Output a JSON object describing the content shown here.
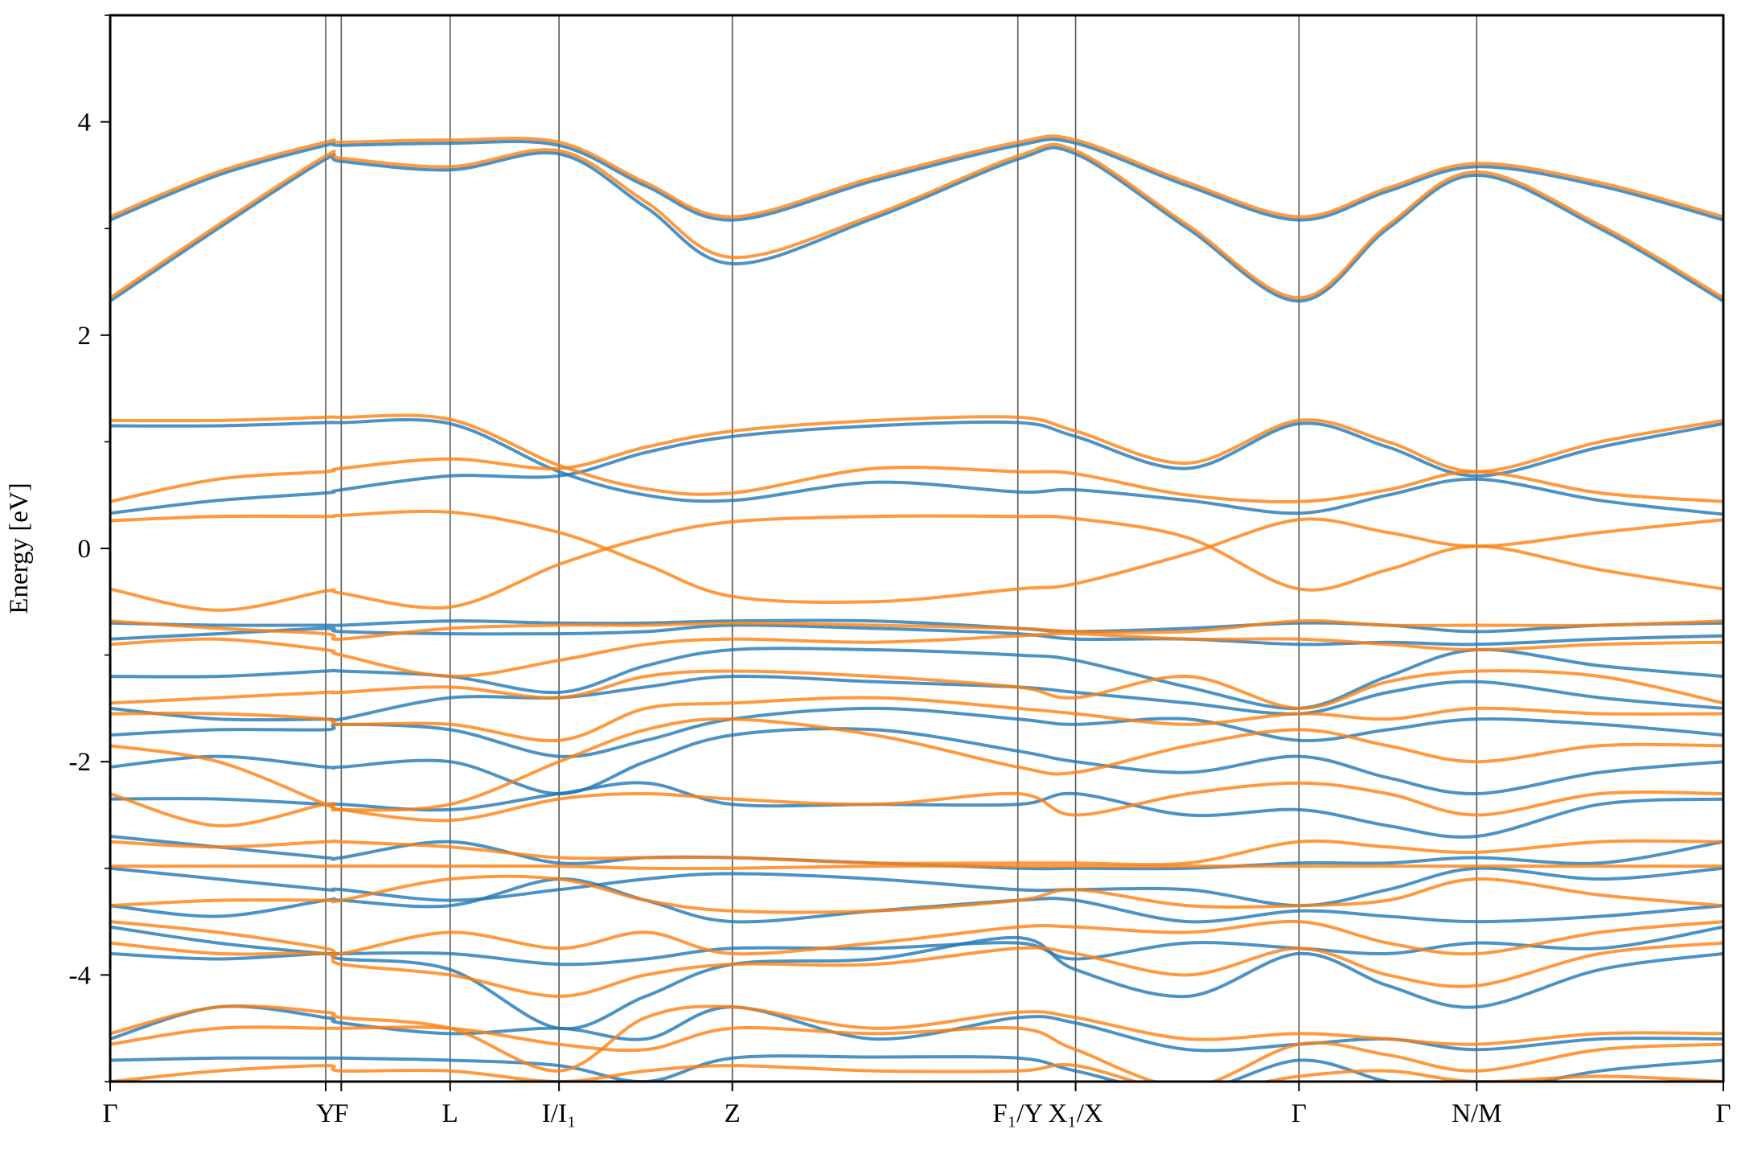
{
  "chart_data": {
    "type": "line",
    "title": "",
    "xlabel": "",
    "ylabel": "Energy [eV]",
    "ylim": [
      -5,
      5
    ],
    "yticks": [
      -4,
      -2,
      0,
      2,
      4
    ],
    "yticks_minor": [
      -5,
      -3,
      -1,
      1,
      3,
      5
    ],
    "grid": false,
    "legend": "none",
    "colors": {
      "blue": "#1f77b4",
      "orange": "#ff7f0e"
    },
    "xticks": [
      {
        "k": 0,
        "label": "Γ"
      },
      {
        "k": 1.94,
        "label": "Y"
      },
      {
        "k": 2.08,
        "label": "F"
      },
      {
        "k": 3.06,
        "label": "L"
      },
      {
        "k": 4.04,
        "label": "I/I₁"
      },
      {
        "k": 5.6,
        "label": "Z"
      },
      {
        "k": 8.17,
        "label": "F₁/Y"
      },
      {
        "k": 8.69,
        "label": "X₁/X"
      },
      {
        "k": 10.7,
        "label": "Γ"
      },
      {
        "k": 12.3,
        "label": "N/M"
      },
      {
        "k": 14.52,
        "label": "Γ"
      }
    ],
    "xlim": [
      0,
      14.52
    ],
    "k": [
      0,
      0.97,
      1.94,
      2.08,
      3.06,
      4.04,
      4.82,
      5.6,
      6.88,
      8.17,
      8.69,
      9.7,
      10.7,
      11.5,
      12.3,
      13.41,
      14.52
    ],
    "series": [
      {
        "color": "blue",
        "values": [
          3.08,
          3.5,
          3.78,
          3.78,
          3.8,
          3.78,
          3.4,
          3.08,
          3.45,
          3.78,
          3.8,
          3.4,
          3.08,
          3.35,
          3.58,
          3.4,
          3.08
        ]
      },
      {
        "color": "blue",
        "values": [
          2.32,
          3.0,
          3.65,
          3.63,
          3.55,
          3.7,
          3.2,
          2.67,
          3.1,
          3.65,
          3.7,
          3.0,
          2.32,
          3.0,
          3.5,
          3.0,
          2.32
        ]
      },
      {
        "color": "blue",
        "values": [
          1.15,
          1.15,
          1.18,
          1.18,
          1.17,
          0.72,
          0.5,
          0.45,
          0.62,
          0.53,
          0.55,
          0.45,
          0.33,
          0.5,
          0.65,
          0.45,
          0.32
        ]
      },
      {
        "color": "blue",
        "values": [
          0.33,
          0.45,
          0.52,
          0.55,
          0.68,
          0.68,
          0.9,
          1.05,
          1.15,
          1.18,
          1.05,
          0.75,
          1.17,
          0.95,
          0.68,
          0.95,
          1.17
        ]
      },
      {
        "color": "blue",
        "values": [
          -0.7,
          -0.72,
          -0.72,
          -0.72,
          -0.68,
          -0.7,
          -0.7,
          -0.68,
          -0.68,
          -0.75,
          -0.78,
          -0.75,
          -0.7,
          -0.72,
          -0.78,
          -0.72,
          -0.7
        ]
      },
      {
        "color": "blue",
        "values": [
          -0.85,
          -0.8,
          -0.75,
          -0.78,
          -0.8,
          -0.8,
          -0.78,
          -0.72,
          -0.75,
          -0.8,
          -0.85,
          -0.85,
          -0.9,
          -0.88,
          -0.9,
          -0.85,
          -0.82
        ]
      },
      {
        "color": "blue",
        "values": [
          -1.2,
          -1.2,
          -1.15,
          -1.15,
          -1.2,
          -1.35,
          -1.1,
          -0.95,
          -0.95,
          -1.0,
          -1.05,
          -1.3,
          -1.5,
          -1.2,
          -0.95,
          -1.1,
          -1.2
        ]
      },
      {
        "color": "blue",
        "values": [
          -1.5,
          -1.6,
          -1.6,
          -1.6,
          -1.4,
          -1.4,
          -1.3,
          -1.2,
          -1.25,
          -1.3,
          -1.35,
          -1.45,
          -1.55,
          -1.35,
          -1.25,
          -1.4,
          -1.5
        ]
      },
      {
        "color": "blue",
        "values": [
          -1.75,
          -1.7,
          -1.7,
          -1.65,
          -1.7,
          -1.95,
          -1.8,
          -1.6,
          -1.5,
          -1.6,
          -1.65,
          -1.6,
          -1.8,
          -1.7,
          -1.6,
          -1.65,
          -1.75
        ]
      },
      {
        "color": "blue",
        "values": [
          -2.05,
          -1.95,
          -2.05,
          -2.05,
          -2.0,
          -2.3,
          -2.0,
          -1.75,
          -1.7,
          -1.9,
          -2.0,
          -2.1,
          -1.95,
          -2.15,
          -2.3,
          -2.1,
          -2.0
        ]
      },
      {
        "color": "blue",
        "values": [
          -2.35,
          -2.35,
          -2.4,
          -2.4,
          -2.45,
          -2.3,
          -2.2,
          -2.4,
          -2.4,
          -2.4,
          -2.3,
          -2.5,
          -2.45,
          -2.6,
          -2.7,
          -2.4,
          -2.35
        ]
      },
      {
        "color": "blue",
        "values": [
          -2.7,
          -2.8,
          -2.9,
          -2.9,
          -2.75,
          -2.95,
          -2.9,
          -2.9,
          -2.95,
          -3.0,
          -3.0,
          -3.0,
          -2.95,
          -2.95,
          -2.9,
          -2.95,
          -2.75
        ]
      },
      {
        "color": "blue",
        "values": [
          -3.0,
          -3.1,
          -3.2,
          -3.2,
          -3.3,
          -3.2,
          -3.1,
          -3.05,
          -3.1,
          -3.2,
          -3.2,
          -3.2,
          -3.35,
          -3.2,
          -3.0,
          -3.1,
          -3.0
        ]
      },
      {
        "color": "blue",
        "values": [
          -3.35,
          -3.45,
          -3.3,
          -3.3,
          -3.35,
          -3.1,
          -3.3,
          -3.5,
          -3.4,
          -3.3,
          -3.3,
          -3.5,
          -3.4,
          -3.45,
          -3.5,
          -3.45,
          -3.35
        ]
      },
      {
        "color": "blue",
        "values": [
          -3.55,
          -3.7,
          -3.8,
          -3.8,
          -3.8,
          -3.9,
          -3.85,
          -3.75,
          -3.75,
          -3.7,
          -3.85,
          -3.7,
          -3.75,
          -3.8,
          -3.7,
          -3.75,
          -3.55
        ]
      },
      {
        "color": "blue",
        "values": [
          -3.8,
          -3.85,
          -3.8,
          -3.85,
          -3.95,
          -4.5,
          -4.2,
          -3.9,
          -3.85,
          -3.65,
          -3.95,
          -4.2,
          -3.8,
          -4.1,
          -4.3,
          -3.95,
          -3.8
        ]
      },
      {
        "color": "blue",
        "values": [
          -4.6,
          -4.3,
          -4.4,
          -4.45,
          -4.55,
          -4.5,
          -4.6,
          -4.3,
          -4.6,
          -4.4,
          -4.45,
          -4.7,
          -4.65,
          -4.6,
          -4.7,
          -4.6,
          -4.6
        ]
      },
      {
        "color": "blue",
        "values": [
          -4.8,
          -4.78,
          -4.78,
          -4.78,
          -4.8,
          -4.85,
          -5.0,
          -4.78,
          -4.77,
          -4.78,
          -4.9,
          -5.1,
          -4.8,
          -5.0,
          -5.1,
          -4.9,
          -4.8
        ]
      },
      {
        "color": "orange",
        "values": [
          3.11,
          3.53,
          3.81,
          3.81,
          3.83,
          3.81,
          3.43,
          3.11,
          3.48,
          3.81,
          3.83,
          3.43,
          3.11,
          3.38,
          3.61,
          3.43,
          3.11
        ]
      },
      {
        "color": "orange",
        "values": [
          2.35,
          3.03,
          3.68,
          3.66,
          3.58,
          3.73,
          3.25,
          2.73,
          3.13,
          3.68,
          3.73,
          3.03,
          2.35,
          3.03,
          3.53,
          3.03,
          2.35
        ]
      },
      {
        "color": "orange",
        "values": [
          1.2,
          1.2,
          1.23,
          1.23,
          1.21,
          0.78,
          0.56,
          0.52,
          0.75,
          0.72,
          0.7,
          0.5,
          0.44,
          0.55,
          0.72,
          0.52,
          0.44
        ]
      },
      {
        "color": "orange",
        "values": [
          0.44,
          0.65,
          0.72,
          0.75,
          0.84,
          0.75,
          0.95,
          1.1,
          1.2,
          1.23,
          1.1,
          0.8,
          1.2,
          1.0,
          0.72,
          1.0,
          1.2
        ]
      },
      {
        "color": "orange",
        "values": [
          0.26,
          0.3,
          0.3,
          0.31,
          0.34,
          0.15,
          -0.15,
          -0.45,
          -0.5,
          -0.38,
          -0.33,
          -0.05,
          0.27,
          0.15,
          0.02,
          0.15,
          0.27
        ]
      },
      {
        "color": "orange",
        "values": [
          -0.38,
          -0.58,
          -0.4,
          -0.42,
          -0.55,
          -0.15,
          0.1,
          0.25,
          0.3,
          0.3,
          0.28,
          0.1,
          -0.38,
          -0.2,
          0.02,
          -0.2,
          -0.38
        ]
      },
      {
        "color": "orange",
        "values": [
          -0.68,
          -0.75,
          -0.8,
          -0.85,
          -0.75,
          -0.72,
          -0.72,
          -0.7,
          -0.72,
          -0.75,
          -0.78,
          -0.78,
          -0.68,
          -0.72,
          -0.72,
          -0.72,
          -0.68
        ]
      },
      {
        "color": "orange",
        "values": [
          -0.9,
          -0.85,
          -0.95,
          -1.0,
          -1.2,
          -1.05,
          -0.9,
          -0.85,
          -0.88,
          -0.82,
          -0.8,
          -0.85,
          -0.85,
          -0.9,
          -0.95,
          -0.9,
          -0.88
        ]
      },
      {
        "color": "orange",
        "values": [
          -1.45,
          -1.4,
          -1.35,
          -1.35,
          -1.3,
          -1.4,
          -1.2,
          -1.15,
          -1.2,
          -1.3,
          -1.4,
          -1.2,
          -1.5,
          -1.25,
          -1.15,
          -1.2,
          -1.45
        ]
      },
      {
        "color": "orange",
        "values": [
          -1.55,
          -1.55,
          -1.6,
          -1.65,
          -1.65,
          -1.8,
          -1.5,
          -1.45,
          -1.4,
          -1.5,
          -1.55,
          -1.65,
          -1.55,
          -1.6,
          -1.5,
          -1.55,
          -1.55
        ]
      },
      {
        "color": "orange",
        "values": [
          -1.85,
          -2.0,
          -2.4,
          -2.45,
          -2.4,
          -2.0,
          -1.7,
          -1.6,
          -1.75,
          -2.05,
          -2.1,
          -1.85,
          -1.7,
          -1.85,
          -2.0,
          -1.85,
          -1.85
        ]
      },
      {
        "color": "orange",
        "values": [
          -2.3,
          -2.6,
          -2.4,
          -2.45,
          -2.55,
          -2.35,
          -2.3,
          -2.35,
          -2.4,
          -2.3,
          -2.5,
          -2.3,
          -2.2,
          -2.3,
          -2.5,
          -2.3,
          -2.3
        ]
      },
      {
        "color": "orange",
        "values": [
          -2.75,
          -2.8,
          -2.75,
          -2.75,
          -2.8,
          -2.9,
          -2.9,
          -2.9,
          -2.95,
          -2.95,
          -2.95,
          -2.95,
          -2.75,
          -2.8,
          -2.85,
          -2.75,
          -2.75
        ]
      },
      {
        "color": "orange",
        "values": [
          -2.98,
          -2.98,
          -2.98,
          -2.98,
          -2.98,
          -2.98,
          -3.0,
          -3.0,
          -2.98,
          -2.98,
          -2.98,
          -2.98,
          -2.98,
          -2.98,
          -2.98,
          -2.98,
          -2.98
        ]
      },
      {
        "color": "orange",
        "values": [
          -3.35,
          -3.3,
          -3.3,
          -3.3,
          -3.1,
          -3.1,
          -3.3,
          -3.4,
          -3.4,
          -3.3,
          -3.2,
          -3.35,
          -3.35,
          -3.3,
          -3.1,
          -3.25,
          -3.35
        ]
      },
      {
        "color": "orange",
        "values": [
          -3.5,
          -3.6,
          -3.75,
          -3.8,
          -3.6,
          -3.75,
          -3.6,
          -3.8,
          -3.7,
          -3.55,
          -3.55,
          -3.6,
          -3.5,
          -3.7,
          -3.8,
          -3.6,
          -3.5
        ]
      },
      {
        "color": "orange",
        "values": [
          -3.7,
          -3.8,
          -3.8,
          -3.9,
          -4.0,
          -4.2,
          -4.0,
          -3.9,
          -3.9,
          -3.75,
          -3.8,
          -4.0,
          -3.75,
          -4.0,
          -4.1,
          -3.8,
          -3.7
        ]
      },
      {
        "color": "orange",
        "values": [
          -4.55,
          -4.3,
          -4.35,
          -4.4,
          -4.5,
          -4.9,
          -4.4,
          -4.3,
          -4.5,
          -4.35,
          -4.4,
          -4.6,
          -4.55,
          -4.6,
          -4.65,
          -4.55,
          -4.55
        ]
      },
      {
        "color": "orange",
        "values": [
          -4.65,
          -4.5,
          -4.5,
          -4.5,
          -4.5,
          -4.65,
          -4.7,
          -4.5,
          -4.55,
          -4.5,
          -4.7,
          -5.05,
          -4.65,
          -4.75,
          -4.9,
          -4.7,
          -4.65
        ]
      },
      {
        "color": "orange",
        "values": [
          -5.0,
          -4.9,
          -4.85,
          -4.9,
          -4.9,
          -5.0,
          -4.9,
          -4.85,
          -4.9,
          -4.9,
          -4.85,
          -5.1,
          -4.95,
          -4.9,
          -5.0,
          -4.95,
          -5.0
        ]
      }
    ]
  }
}
